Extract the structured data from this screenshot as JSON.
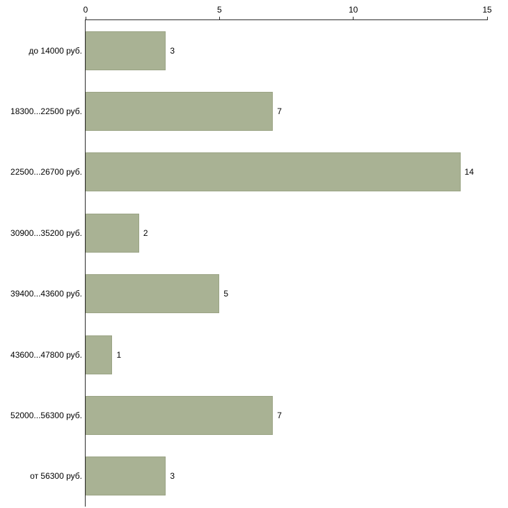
{
  "chart_data": {
    "type": "bar",
    "orientation": "horizontal",
    "title": "",
    "xlabel": "",
    "ylabel": "",
    "categories": [
      "до 14000 руб.",
      "18300...22500 руб.",
      "22500...26700 руб.",
      "30900...35200 руб.",
      "39400...43600 руб.",
      "43600...47800 руб.",
      "52000...56300 руб.",
      "от 56300 руб."
    ],
    "values": [
      3,
      7,
      14,
      2,
      5,
      1,
      7,
      3
    ],
    "value_labels": [
      "3",
      "7",
      "14",
      "2",
      "5",
      "1",
      "7",
      "3"
    ],
    "xlim": [
      0,
      15
    ],
    "x_ticks": [
      "0",
      "5",
      "10",
      "15"
    ],
    "grid": false,
    "legend": false,
    "bar_color": "#a9b294",
    "bar_border_color": "#9aa384",
    "axis_color": "#2b2b2b",
    "background_color": "#ffffff"
  }
}
